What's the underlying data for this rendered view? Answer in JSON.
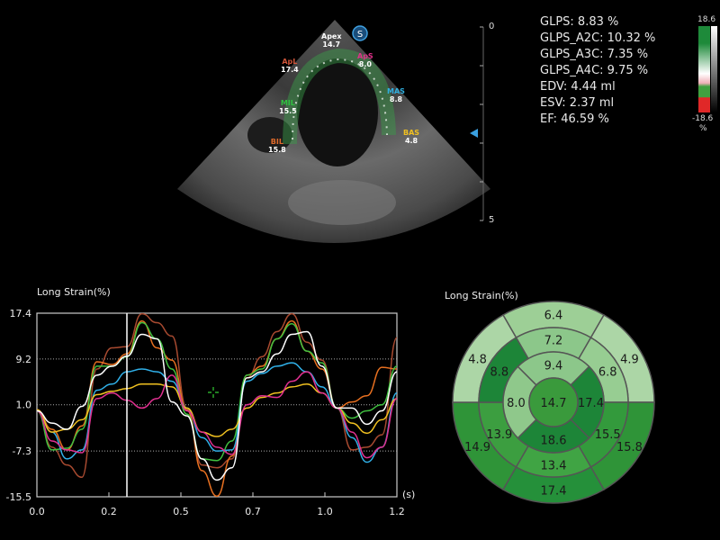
{
  "echo": {
    "view_badge": "S",
    "segments": [
      {
        "name": "Apex",
        "value": "14.7",
        "color": "#ffffff"
      },
      {
        "name": "ApL",
        "value": "17.4",
        "color": "#d0553a"
      },
      {
        "name": "ApS",
        "value": "8.0",
        "color": "#e0308a"
      },
      {
        "name": "MIL",
        "value": "15.5",
        "color": "#30c040"
      },
      {
        "name": "MAS",
        "value": "8.8",
        "color": "#30b0e0"
      },
      {
        "name": "BIL",
        "value": "15.8",
        "color": "#e06a2a"
      },
      {
        "name": "BAS",
        "value": "4.8",
        "color": "#f0c020"
      }
    ],
    "depth_scale": {
      "top_label": "0",
      "bottom_label": "5"
    }
  },
  "stats": [
    "GLPS: 8.83 %",
    "GLPS_A2C: 10.32 %",
    "GLPS_A3C: 7.35 %",
    "GLPS_A4C: 9.75 %",
    "EDV: 4.44 ml",
    "ESV: 2.37 ml",
    "EF: 46.59 %"
  ],
  "colorbar": {
    "max_label": "18.6",
    "min_label": "-18.6",
    "unit": "%",
    "colors": [
      "#1e8a3a",
      "#ffffff",
      "#f0b0b8",
      "#40a040",
      "#e02828"
    ]
  },
  "chart_data": [
    {
      "type": "line",
      "title": "Long Strain(%)",
      "xunit": "(s)",
      "xlim": [
        0,
        1.2
      ],
      "ylim": [
        -15.5,
        17.4
      ],
      "x_ticks": [
        0,
        0.24,
        0.48,
        0.72,
        0.96,
        1.2
      ],
      "x_tick_labels": [
        "0.0",
        "0.2",
        "0.5",
        "0.7",
        "1.0",
        "1.2"
      ],
      "y_ticks": [
        17.4,
        9.2,
        1.0,
        -7.3,
        -15.5
      ],
      "y_tick_labels": [
        "17.4",
        "9.2",
        "1.0",
        "-7.3",
        "-15.5"
      ],
      "grid": "horizontal dotted",
      "cursor_x": 0.3,
      "x": [
        0,
        0.05,
        0.1,
        0.15,
        0.2,
        0.25,
        0.3,
        0.35,
        0.4,
        0.45,
        0.5,
        0.55,
        0.6,
        0.65,
        0.7,
        0.75,
        0.8,
        0.85,
        0.9,
        0.95,
        1.0,
        1.05,
        1.1,
        1.15,
        1.2
      ],
      "series": [
        {
          "color": "#a84a30",
          "values": [
            -0.1,
            -6.6,
            -9.8,
            -12,
            7.4,
            11.2,
            11.4,
            17.3,
            15.7,
            13.3,
            0.4,
            -9.8,
            -10.3,
            -8.7,
            5.8,
            9.6,
            14.1,
            17.3,
            12.2,
            9.0,
            0.4,
            -7.1,
            -6.6,
            -4.4,
            13
          ]
        },
        {
          "color": "#e87020",
          "values": [
            0.1,
            -3.4,
            -7.1,
            -2.8,
            8.7,
            8.2,
            10.1,
            16,
            11.2,
            9.0,
            0.1,
            -10.8,
            -15.4,
            -8.2,
            6.3,
            7.9,
            12.8,
            16,
            10.6,
            7.4,
            0.4,
            1.5,
            2.6,
            7.7,
            7.4
          ]
        },
        {
          "color": "#40c040",
          "values": [
            -0.1,
            -7.1,
            -6.8,
            -3.4,
            7.9,
            7.9,
            9.6,
            15.7,
            12.8,
            7.4,
            -0.7,
            -8.7,
            -9,
            -5.5,
            6.3,
            7.4,
            12.8,
            15.5,
            10.6,
            8.5,
            0.4,
            -1.4,
            -0.1,
            1,
            7.9
          ]
        },
        {
          "color": "#30b0e8",
          "values": [
            -0.1,
            -3.9,
            -8.7,
            -7.1,
            3.6,
            4.7,
            6.9,
            7.4,
            6.9,
            5.2,
            0.4,
            -4.9,
            -7.3,
            -7.1,
            5.2,
            6.6,
            7.9,
            8.5,
            6.9,
            4.2,
            0.4,
            -4.9,
            -9.3,
            -6.6,
            3.1
          ]
        },
        {
          "color": "#f0c020",
          "values": [
            0.1,
            -3.9,
            -3.4,
            -1.7,
            2.8,
            3.4,
            3.9,
            4.7,
            4.7,
            4.2,
            0.4,
            -3.9,
            -4.7,
            -3.4,
            0.4,
            2.3,
            3.1,
            4.2,
            4.7,
            3.1,
            0.4,
            -2.3,
            -4.1,
            -1.7,
            2.1
          ]
        },
        {
          "color": "#e03090",
          "values": [
            -0.1,
            -5.5,
            -7.1,
            -7.6,
            2.1,
            3.1,
            1.8,
            0.4,
            2.1,
            6.3,
            -0.1,
            -3.9,
            -6.6,
            -7.9,
            1,
            2.6,
            2.3,
            5.2,
            6.9,
            3.1,
            0.4,
            -3.9,
            -8.5,
            -6.6,
            2.1
          ]
        },
        {
          "color": "#ffffff",
          "values": [
            -0.1,
            -2.3,
            -3.4,
            0.7,
            6.3,
            7.9,
            9.7,
            13.6,
            12.8,
            1.5,
            -1,
            -8.7,
            -12.5,
            -10.3,
            5.8,
            6.9,
            10.1,
            13.6,
            14.1,
            7.9,
            0.4,
            0.4,
            -2.5,
            -0.1,
            6.9
          ]
        }
      ]
    },
    {
      "type": "bullseye",
      "title": "Long Strain(%)",
      "basal": [
        {
          "pos": "top",
          "value": "6.4",
          "color": "#9dcf96"
        },
        {
          "pos": "upper-right",
          "value": "4.9",
          "color": "#acd6a6"
        },
        {
          "pos": "lower-right",
          "value": "15.8",
          "color": "#2f9438"
        },
        {
          "pos": "bottom",
          "value": "17.4",
          "color": "#25903a"
        },
        {
          "pos": "lower-left",
          "value": "14.9",
          "color": "#2f9438"
        },
        {
          "pos": "upper-left",
          "value": "4.8",
          "color": "#acd6a6"
        }
      ],
      "mid": [
        {
          "pos": "top",
          "value": "7.2",
          "color": "#8cc78a"
        },
        {
          "pos": "upper-right",
          "value": "6.8",
          "color": "#97cd92"
        },
        {
          "pos": "lower-right",
          "value": "15.5",
          "color": "#339a3c"
        },
        {
          "pos": "bottom",
          "value": "13.4",
          "color": "#40a444"
        },
        {
          "pos": "lower-left",
          "value": "13.9",
          "color": "#3c9e40"
        },
        {
          "pos": "upper-left",
          "value": "8.8",
          "color": "#1d8538"
        }
      ],
      "apical": [
        {
          "pos": "top",
          "value": "9.4",
          "color": "#8cc78a"
        },
        {
          "pos": "right",
          "value": "17.4",
          "color": "#1d8538"
        },
        {
          "pos": "bottom",
          "value": "18.6",
          "color": "#1d8538"
        },
        {
          "pos": "left",
          "value": "8.0",
          "color": "#8fc88b"
        }
      ],
      "apex": {
        "value": "14.7",
        "color": "#3a9a3c"
      }
    }
  ]
}
